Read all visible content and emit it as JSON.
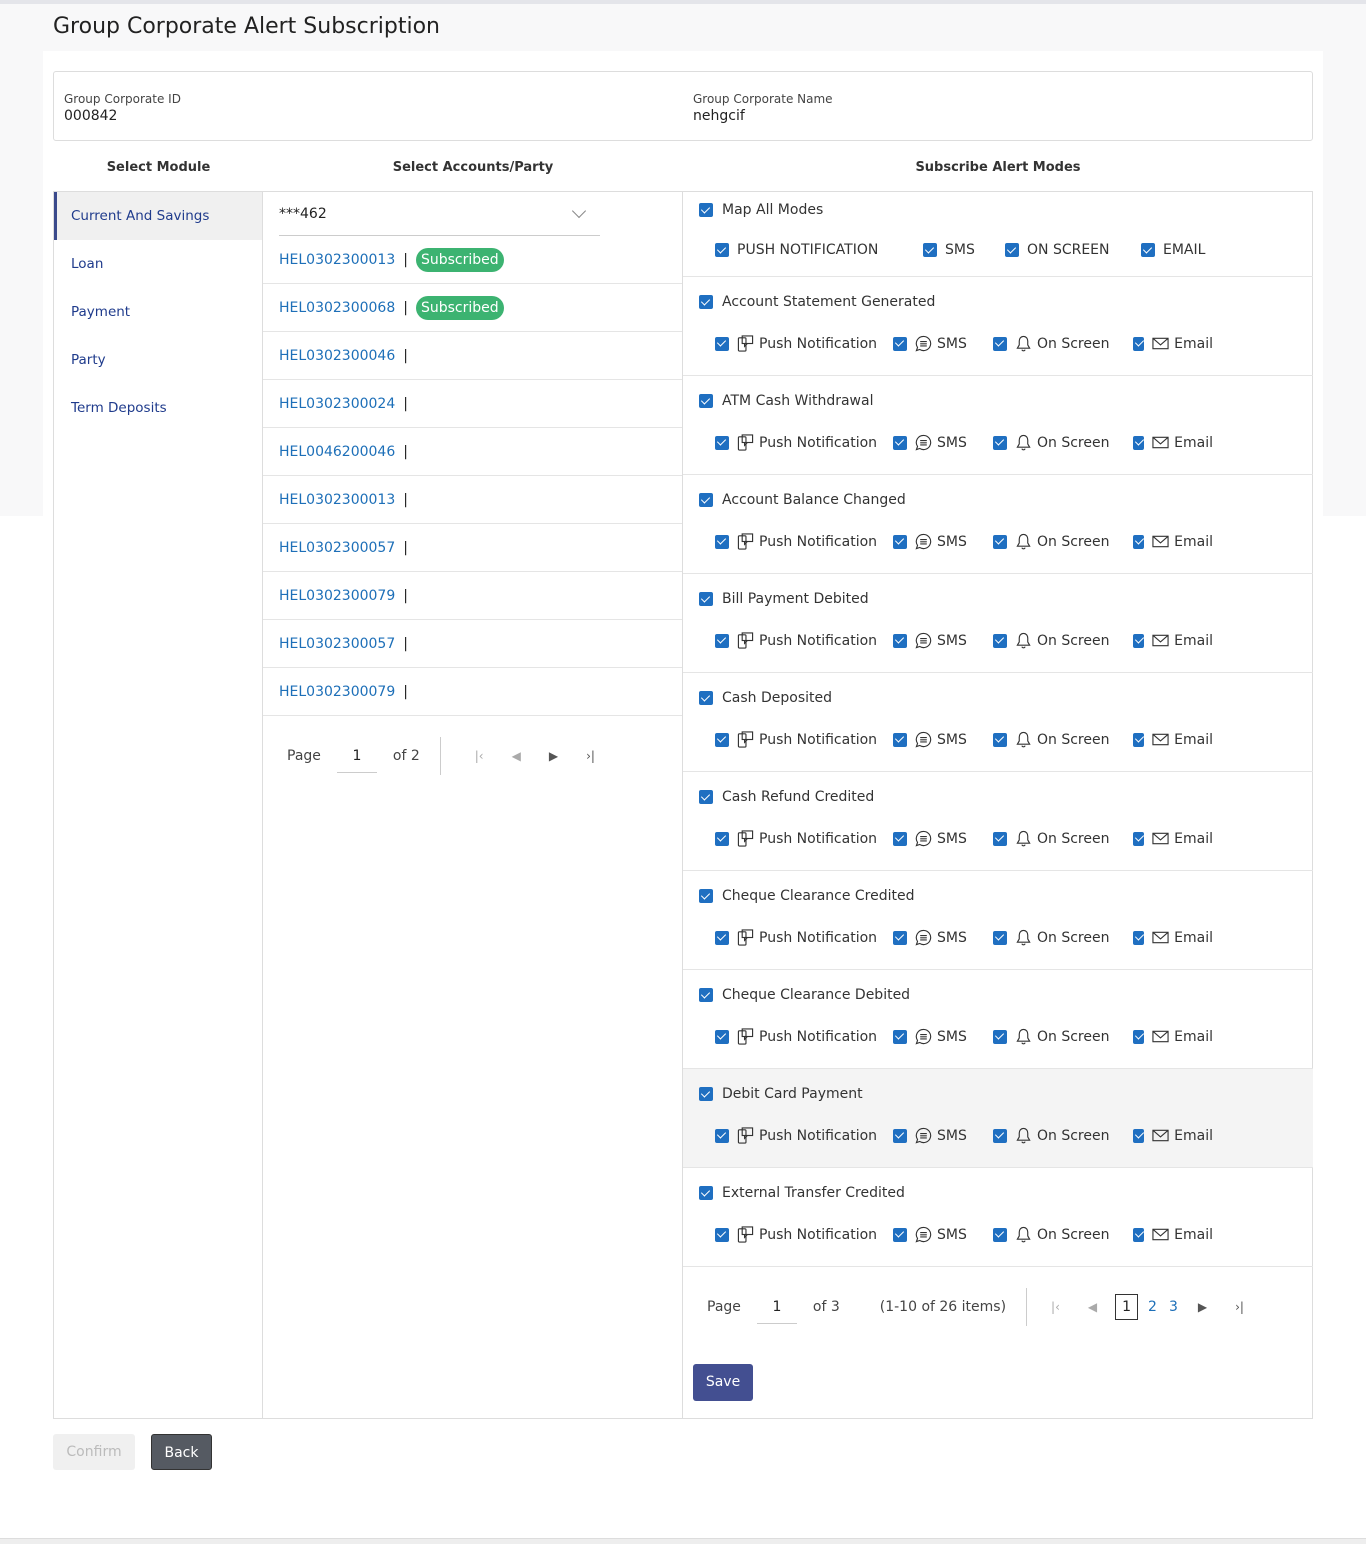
{
  "page": {
    "title": "Group Corporate Alert Subscription"
  },
  "info": {
    "id_label": "Group Corporate ID",
    "id_value": "000842",
    "name_label": "Group Corporate Name",
    "name_value": "nehgcif"
  },
  "headers": {
    "module": "Select Module",
    "accounts": "Select Accounts/Party",
    "modes": "Subscribe Alert Modes"
  },
  "modules": [
    {
      "label": "Current And Savings",
      "active": true
    },
    {
      "label": "Loan"
    },
    {
      "label": "Payment"
    },
    {
      "label": "Party"
    },
    {
      "label": "Term Deposits"
    }
  ],
  "accounts": {
    "selected": "***462",
    "items": [
      {
        "id": "HEL0302300013",
        "badge": "Subscribed"
      },
      {
        "id": "HEL0302300068",
        "badge": "Subscribed"
      },
      {
        "id": "HEL0302300046"
      },
      {
        "id": "HEL0302300024"
      },
      {
        "id": "HEL0046200046"
      },
      {
        "id": "HEL0302300013"
      },
      {
        "id": "HEL0302300057"
      },
      {
        "id": "HEL0302300079"
      },
      {
        "id": "HEL0302300057"
      },
      {
        "id": "HEL0302300079"
      }
    ],
    "separator": "|",
    "pager": {
      "page_label": "Page",
      "page": "1",
      "of": "of 2"
    }
  },
  "map_all": {
    "label": "Map All Modes",
    "checked": true,
    "modes": [
      "PUSH NOTIFICATION",
      "SMS",
      "ON SCREEN",
      "EMAIL"
    ]
  },
  "mode_labels": [
    "Push Notification",
    "SMS",
    "On Screen",
    "Email"
  ],
  "alerts": [
    {
      "label": "Account Statement Generated"
    },
    {
      "label": "ATM Cash Withdrawal"
    },
    {
      "label": "Account Balance Changed"
    },
    {
      "label": "Bill Payment Debited"
    },
    {
      "label": "Cash Deposited"
    },
    {
      "label": "Cash Refund Credited"
    },
    {
      "label": "Cheque Clearance Credited"
    },
    {
      "label": "Cheque Clearance Debited"
    },
    {
      "label": "Debit Card Payment",
      "highlighted": true
    },
    {
      "label": "External Transfer Credited"
    }
  ],
  "alerts_pager": {
    "page_label": "Page",
    "page": "1",
    "of": "of 3",
    "summary": "(1-10 of 26 items)",
    "pages": [
      "1",
      "2",
      "3"
    ]
  },
  "buttons": {
    "save": "Save",
    "confirm": "Confirm",
    "back": "Back"
  },
  "colors": {
    "accent": "#434f91",
    "checkbox": "#1f6fc1",
    "link": "#1d6fb8",
    "badge": "#3cb371"
  }
}
